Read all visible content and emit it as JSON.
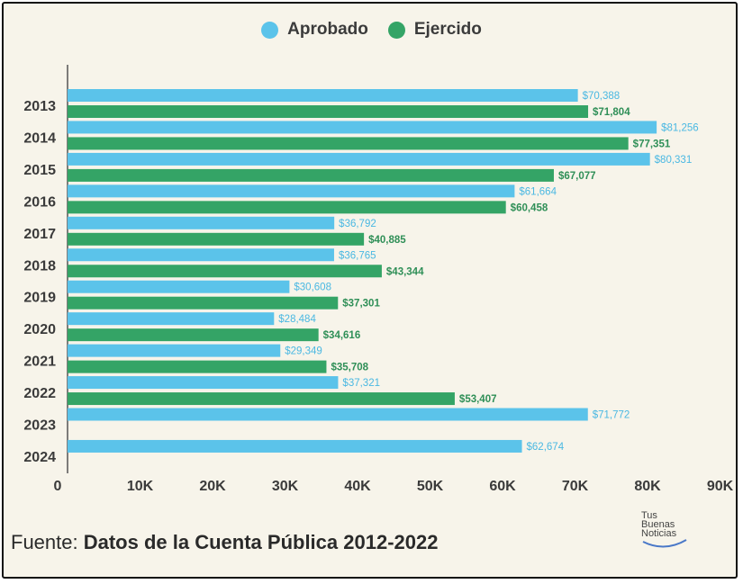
{
  "legend": {
    "approved_label": "Aprobado",
    "spent_label": "Ejercido",
    "approved_color": "#5bc3ea",
    "spent_color": "#34a466"
  },
  "chart_data": {
    "type": "bar",
    "orientation": "horizontal",
    "title": "",
    "categories": [
      "2013",
      "2014",
      "2015",
      "2016",
      "2017",
      "2018",
      "2019",
      "2020",
      "2021",
      "2022",
      "2023",
      "2024"
    ],
    "series": [
      {
        "name": "Aprobado",
        "values": [
          70388,
          81256,
          80331,
          61664,
          36792,
          36765,
          30608,
          28484,
          29349,
          37321,
          71772,
          62674
        ],
        "labels": [
          "$70,388",
          "$81,256",
          "$80,331",
          "$61,664",
          "$36,792",
          "$36,765",
          "$30,608",
          "$28,484",
          "$29,349",
          "$37,321",
          "$71,772",
          "$62,674"
        ]
      },
      {
        "name": "Ejercido",
        "values": [
          71804,
          77351,
          67077,
          60458,
          40885,
          43344,
          37301,
          34616,
          35708,
          53407,
          null,
          null
        ],
        "labels": [
          "$71,804",
          "$77,351",
          "$67,077",
          "$60,458",
          "$40,885",
          "$43,344",
          "$37,301",
          "$34,616",
          "$35,708",
          "$53,407",
          null,
          null
        ]
      }
    ],
    "x_ticks": [
      "0",
      "10K",
      "20K",
      "30K",
      "40K",
      "50K",
      "60K",
      "70K",
      "80K",
      "90K"
    ],
    "xlim": [
      0,
      90000
    ],
    "legend_position": "top-center",
    "grid": false
  },
  "source": {
    "prefix": "Fuente:",
    "text": "Datos de la Cuenta Pública 2012-2022"
  },
  "logo": {
    "line1": "Tus",
    "line2": "Buenas",
    "line3": "Noticias"
  }
}
